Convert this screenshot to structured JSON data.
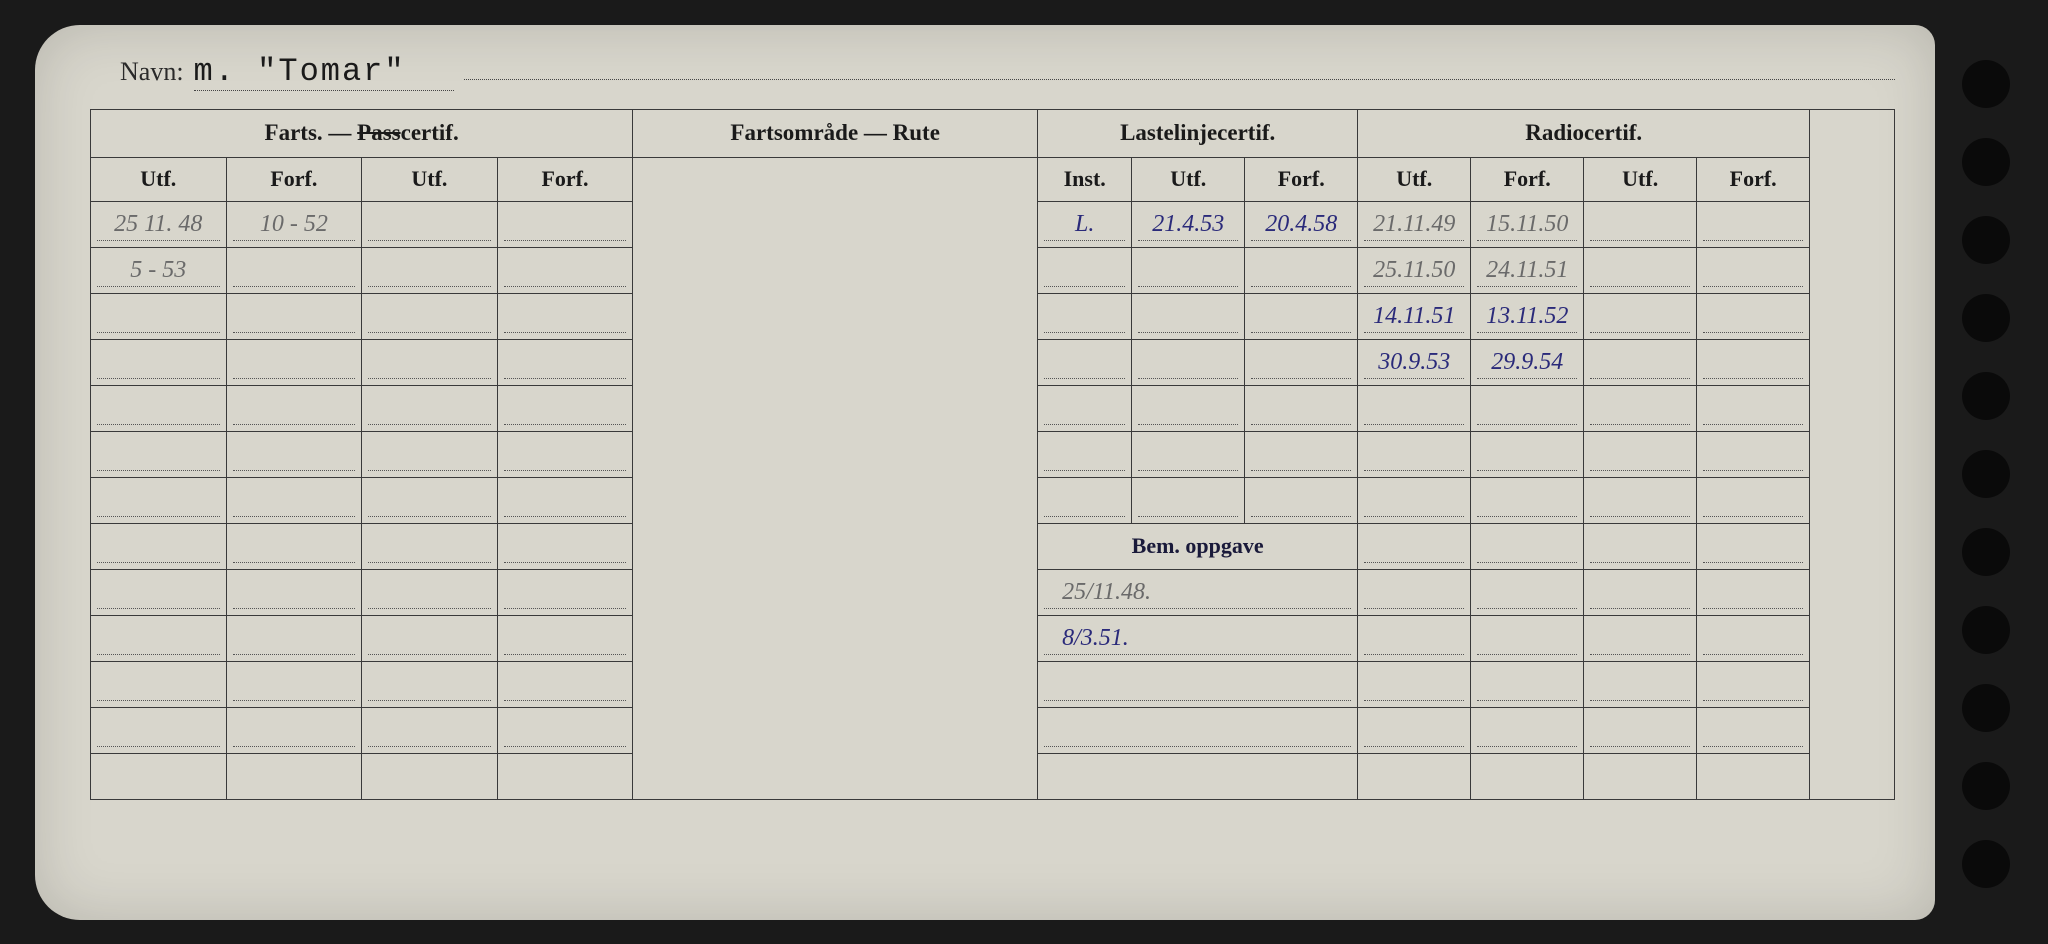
{
  "navn_label": "Navn:",
  "navn_value": "m. \"Tomar\"",
  "headers": {
    "farts": "Farts. — Passcertif.",
    "fartsomrade": "Fartsområde — Rute",
    "lastelinje": "Lastelinjecertif.",
    "radio": "Radiocertif.",
    "utf": "Utf.",
    "forf": "Forf.",
    "inst": "Inst.",
    "bem": "Bem. oppgave"
  },
  "farts": {
    "rows": [
      {
        "utf1": "25 11. 48",
        "forf1": "10 - 52",
        "utf2": "",
        "forf2": ""
      },
      {
        "utf1": "5 - 53",
        "forf1": "",
        "utf2": "",
        "forf2": ""
      }
    ]
  },
  "lastelinje": {
    "rows": [
      {
        "inst": "L.",
        "utf": "21.4.53",
        "forf": "20.4.58"
      }
    ]
  },
  "radio": {
    "rows": [
      {
        "utf1": "21.11.49",
        "forf1": "15.11.50",
        "utf2": "",
        "forf2": ""
      },
      {
        "utf1": "25.11.50",
        "forf1": "24.11.51",
        "utf2": "",
        "forf2": ""
      },
      {
        "utf1": "14.11.51",
        "forf1": "13.11.52",
        "utf2": "",
        "forf2": ""
      },
      {
        "utf1": "30.9.53",
        "forf1": "29.9.54",
        "utf2": "",
        "forf2": ""
      }
    ]
  },
  "bem": {
    "rows": [
      "25/11.48.",
      "8/3.51."
    ]
  },
  "colors": {
    "card_bg": "#d8d6cc",
    "page_bg": "#1a1a1a",
    "ink_blue": "#2a2a7a",
    "ink_gray": "#6a6a6a",
    "border": "#3a3a3a"
  }
}
